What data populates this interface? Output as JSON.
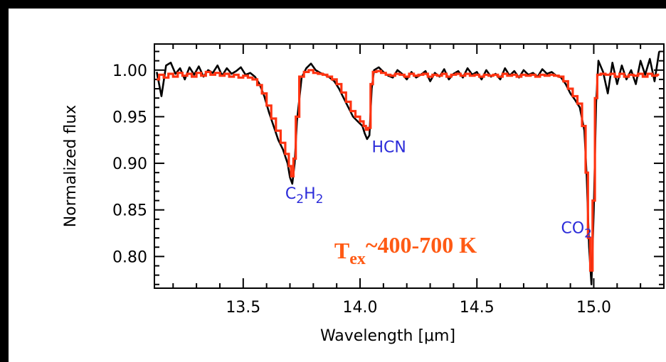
{
  "chart_data": {
    "type": "line",
    "xlabel": "Wavelength [μm]",
    "ylabel": "Normalized flux",
    "xlim": [
      13.12,
      15.3
    ],
    "ylim": [
      0.766,
      1.028
    ],
    "xticks": [
      13.5,
      14.0,
      14.5,
      15.0
    ],
    "xtick_labels": [
      "13.5",
      "14.0",
      "14.5",
      "15.0"
    ],
    "yticks": [
      0.8,
      0.85,
      0.9,
      0.95,
      1.0
    ],
    "ytick_labels": [
      "0.80",
      "0.85",
      "0.90",
      "0.95",
      "1.00"
    ],
    "grid": false,
    "colors": {
      "observed": "#000000",
      "model": "#ff3311",
      "molecule_labels": "#2b2bd9",
      "temperature_label": "#ff5a14"
    },
    "series": [
      {
        "role": "observed",
        "x": [
          13.13,
          13.15,
          13.17,
          13.19,
          13.21,
          13.23,
          13.25,
          13.27,
          13.29,
          13.31,
          13.33,
          13.35,
          13.37,
          13.39,
          13.41,
          13.43,
          13.45,
          13.47,
          13.49,
          13.51,
          13.53,
          13.55,
          13.57,
          13.59,
          13.61,
          13.63,
          13.65,
          13.67,
          13.69,
          13.7,
          13.71,
          13.72,
          13.73,
          13.75,
          13.77,
          13.79,
          13.81,
          13.83,
          13.85,
          13.87,
          13.89,
          13.91,
          13.93,
          13.95,
          13.97,
          13.99,
          14.01,
          14.02,
          14.03,
          14.04,
          14.05,
          14.06,
          14.08,
          14.1,
          14.12,
          14.14,
          14.16,
          14.18,
          14.2,
          14.22,
          14.24,
          14.26,
          14.28,
          14.3,
          14.32,
          14.34,
          14.36,
          14.38,
          14.4,
          14.42,
          14.44,
          14.46,
          14.48,
          14.5,
          14.52,
          14.54,
          14.56,
          14.58,
          14.6,
          14.62,
          14.64,
          14.66,
          14.68,
          14.7,
          14.72,
          14.74,
          14.76,
          14.78,
          14.8,
          14.82,
          14.84,
          14.86,
          14.88,
          14.9,
          14.92,
          14.94,
          14.96,
          14.97,
          14.98,
          14.99,
          15.0,
          15.01,
          15.02,
          15.04,
          15.06,
          15.08,
          15.1,
          15.12,
          15.14,
          15.16,
          15.18,
          15.2,
          15.22,
          15.24,
          15.26,
          15.28
        ],
        "y": [
          0.998,
          0.972,
          1.005,
          1.008,
          0.996,
          1.002,
          0.99,
          1.003,
          0.995,
          1.004,
          0.993,
          1.0,
          0.997,
          1.005,
          0.994,
          1.002,
          0.996,
          0.999,
          1.003,
          0.995,
          0.997,
          0.993,
          0.985,
          0.972,
          0.955,
          0.94,
          0.925,
          0.915,
          0.9,
          0.885,
          0.878,
          0.9,
          0.945,
          0.992,
          1.002,
          1.007,
          1.0,
          0.997,
          0.995,
          0.992,
          0.988,
          0.98,
          0.97,
          0.96,
          0.95,
          0.945,
          0.94,
          0.932,
          0.926,
          0.93,
          0.98,
          1.0,
          1.003,
          0.998,
          0.994,
          0.992,
          1.0,
          0.996,
          0.99,
          0.998,
          0.992,
          0.995,
          0.999,
          0.988,
          0.997,
          0.993,
          1.001,
          0.99,
          0.996,
          0.999,
          0.992,
          1.002,
          0.995,
          0.998,
          0.99,
          1.0,
          0.993,
          0.996,
          0.99,
          1.002,
          0.994,
          0.999,
          0.992,
          1.0,
          0.995,
          0.997,
          0.993,
          1.001,
          0.996,
          0.998,
          0.994,
          0.992,
          0.985,
          0.975,
          0.968,
          0.96,
          0.935,
          0.885,
          0.81,
          0.77,
          0.85,
          0.965,
          1.01,
          0.998,
          0.975,
          1.008,
          0.985,
          1.005,
          0.99,
          1.0,
          0.985,
          1.01,
          0.995,
          1.012,
          0.988,
          1.02
        ]
      },
      {
        "role": "model",
        "x": [
          13.13,
          13.15,
          13.17,
          13.19,
          13.21,
          13.23,
          13.25,
          13.27,
          13.29,
          13.31,
          13.33,
          13.35,
          13.37,
          13.39,
          13.41,
          13.43,
          13.45,
          13.47,
          13.49,
          13.51,
          13.53,
          13.55,
          13.57,
          13.59,
          13.61,
          13.63,
          13.65,
          13.67,
          13.69,
          13.7,
          13.71,
          13.72,
          13.73,
          13.75,
          13.77,
          13.79,
          13.81,
          13.83,
          13.85,
          13.87,
          13.89,
          13.91,
          13.93,
          13.95,
          13.97,
          13.99,
          14.01,
          14.02,
          14.03,
          14.04,
          14.05,
          14.06,
          14.08,
          14.1,
          14.12,
          14.14,
          14.16,
          14.18,
          14.2,
          14.22,
          14.24,
          14.26,
          14.28,
          14.3,
          14.32,
          14.34,
          14.36,
          14.38,
          14.4,
          14.42,
          14.44,
          14.46,
          14.48,
          14.5,
          14.52,
          14.54,
          14.56,
          14.58,
          14.6,
          14.62,
          14.64,
          14.66,
          14.68,
          14.7,
          14.72,
          14.74,
          14.76,
          14.78,
          14.8,
          14.82,
          14.84,
          14.86,
          14.88,
          14.9,
          14.92,
          14.94,
          14.96,
          14.97,
          14.98,
          14.99,
          15.0,
          15.01,
          15.02,
          15.04,
          15.06,
          15.08,
          15.1,
          15.12,
          15.14,
          15.16,
          15.18,
          15.2,
          15.22,
          15.24,
          15.26,
          15.28
        ],
        "y": [
          0.99,
          0.995,
          0.992,
          0.996,
          0.993,
          0.997,
          0.994,
          0.996,
          0.993,
          0.997,
          0.994,
          0.998,
          0.995,
          0.997,
          0.994,
          0.996,
          0.993,
          0.995,
          0.992,
          0.994,
          0.992,
          0.99,
          0.984,
          0.975,
          0.962,
          0.948,
          0.935,
          0.922,
          0.91,
          0.897,
          0.886,
          0.905,
          0.95,
          0.993,
          0.998,
          1.0,
          0.997,
          0.996,
          0.995,
          0.993,
          0.99,
          0.985,
          0.976,
          0.966,
          0.956,
          0.95,
          0.945,
          0.94,
          0.936,
          0.938,
          0.985,
          0.998,
          0.999,
          0.997,
          0.995,
          0.994,
          0.996,
          0.995,
          0.993,
          0.996,
          0.994,
          0.995,
          0.996,
          0.993,
          0.995,
          0.994,
          0.996,
          0.993,
          0.995,
          0.996,
          0.994,
          0.996,
          0.994,
          0.995,
          0.993,
          0.995,
          0.994,
          0.995,
          0.993,
          0.996,
          0.994,
          0.995,
          0.993,
          0.995,
          0.994,
          0.995,
          0.993,
          0.995,
          0.994,
          0.995,
          0.994,
          0.993,
          0.988,
          0.98,
          0.972,
          0.964,
          0.94,
          0.89,
          0.82,
          0.785,
          0.86,
          0.97,
          0.995,
          0.996,
          0.995,
          0.996,
          0.993,
          0.996,
          0.993,
          0.995,
          0.994,
          0.996,
          0.993,
          0.996,
          0.994,
          0.995
        ]
      }
    ],
    "annotations": [
      {
        "text": "HCN",
        "x": 14.05,
        "y": 0.912
      },
      {
        "text": "C",
        "sub": "2",
        "text2": "H",
        "sub2": "2",
        "x": 13.68,
        "y": 0.862
      },
      {
        "text": "CO",
        "sub": "2",
        "x": 14.86,
        "y": 0.825
      },
      {
        "text": "T",
        "sub": "ex",
        "suffix": "~400-700 K",
        "x": 13.89,
        "y": 0.798
      }
    ]
  }
}
